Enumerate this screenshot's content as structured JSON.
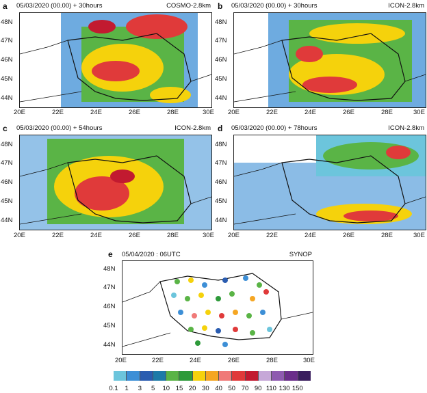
{
  "panels": [
    {
      "letter": "a",
      "label": "05/03/2020 (00.00) + 30hours",
      "model": "COSMO-2.8km"
    },
    {
      "letter": "b",
      "label": "05/03/2020 (00.00) + 30hours",
      "model": "ICON-2.8km"
    },
    {
      "letter": "c",
      "label": "05/03/2020 (00.00) + 54hours",
      "model": "ICON-2.8km"
    },
    {
      "letter": "d",
      "label": "05/03/2020 (00.00) + 78hours",
      "model": "ICON-2.8km"
    },
    {
      "letter": "e",
      "label": "05/04/2020 : 06UTC",
      "model": "SYNOP"
    }
  ],
  "lat_ticks": [
    "48N",
    "47N",
    "46N",
    "45N",
    "44N"
  ],
  "lon_ticks_top": [
    "20E",
    "22E",
    "24E",
    "26E",
    "28E",
    "30E"
  ],
  "lon_ticks_bottom": [
    "20E",
    "22E",
    "24E",
    "26E",
    "28E",
    "30E"
  ],
  "colorbar": {
    "labels": [
      "0.1",
      "1",
      "3",
      "5",
      "10",
      "15",
      "20",
      "30",
      "40",
      "50",
      "70",
      "90",
      "110",
      "130",
      "150"
    ],
    "colors": [
      "#6cc5dc",
      "#3d8fd6",
      "#2a5cb0",
      "#1d7aa8",
      "#5ab446",
      "#2e9a3a",
      "#f5d20c",
      "#f5a623",
      "#f07a78",
      "#e03a3a",
      "#c21a30",
      "#c6a8d8",
      "#8e5ab0",
      "#6a2d8a",
      "#3a1e5e"
    ]
  }
}
